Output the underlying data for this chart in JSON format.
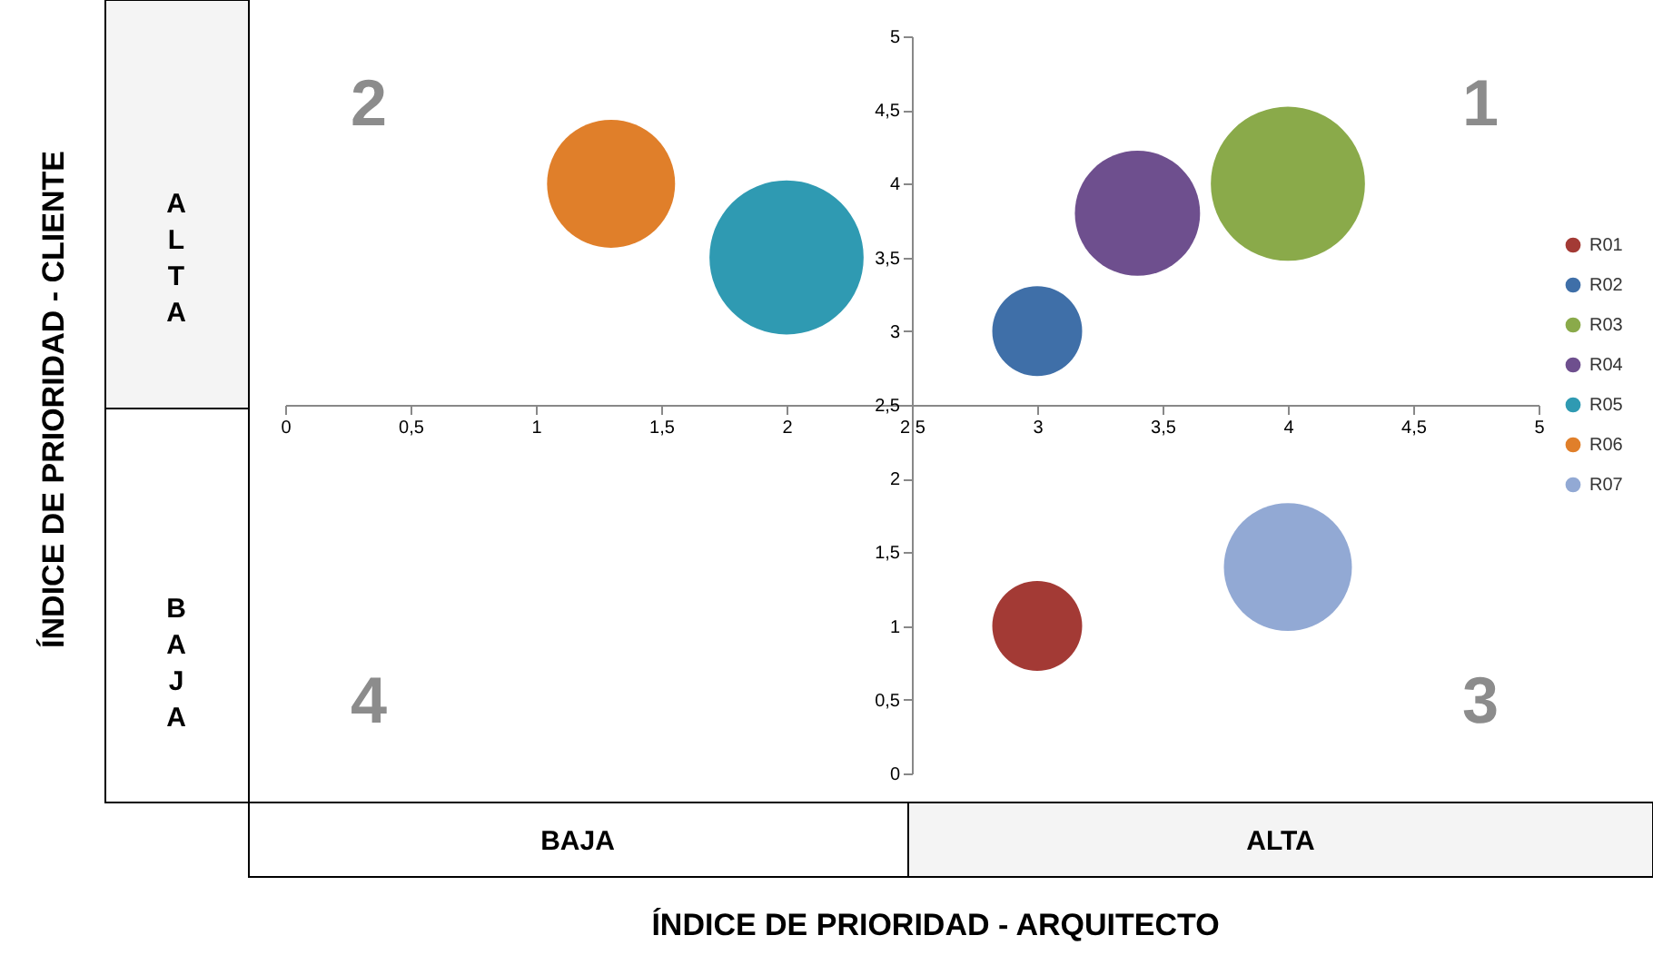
{
  "chart_data": {
    "type": "bubble",
    "series": [
      {
        "name": "R01",
        "color": "#a33a35",
        "x": [
          3
        ],
        "values": [
          1
        ],
        "sizes": [
          0.34
        ]
      },
      {
        "name": "R02",
        "color": "#3f6fa8",
        "x": [
          3
        ],
        "values": [
          3
        ],
        "sizes": [
          0.34
        ]
      },
      {
        "name": "R03",
        "color": "#8aaa4a",
        "x": [
          4
        ],
        "values": [
          4
        ],
        "sizes": [
          1
        ]
      },
      {
        "name": "R04",
        "color": "#6e4f8e",
        "x": [
          3.4
        ],
        "values": [
          3.8
        ],
        "sizes": [
          0.66
        ]
      },
      {
        "name": "R05",
        "color": "#2f9ab2",
        "x": [
          2
        ],
        "values": [
          3.5
        ],
        "sizes": [
          1
        ]
      },
      {
        "name": "R06",
        "color": "#e07f2a",
        "x": [
          1.3
        ],
        "values": [
          4
        ],
        "sizes": [
          0.69
        ]
      },
      {
        "name": "R07",
        "color": "#92a9d4",
        "x": [
          4
        ],
        "values": [
          1.4
        ],
        "sizes": [
          0.69
        ]
      }
    ],
    "xlim": [
      0,
      5
    ],
    "xticks": [
      0,
      {
        "value": 0.5,
        "label": "0,5"
      },
      1,
      {
        "value": 1.5,
        "label": "1,5"
      },
      2,
      {
        "value": 2.5,
        "label": "2,5"
      },
      3,
      {
        "value": 3.5,
        "label": "3,5"
      },
      4,
      {
        "value": 4.5,
        "label": "4,5"
      },
      5
    ],
    "ylim": [
      0,
      5
    ],
    "yticks": [
      0,
      {
        "value": 0.5,
        "label": "0,5"
      },
      1,
      {
        "value": 1.5,
        "label": "1,5"
      },
      2,
      {
        "value": 2.5,
        "label": "2,5"
      },
      3,
      {
        "value": 3.5,
        "label": "3,5"
      },
      4,
      {
        "value": 4.5,
        "label": "4,5"
      },
      5
    ],
    "annotations": [
      "1",
      "2",
      "3",
      "4",
      "ALTA",
      "BAJA",
      "BAJA",
      "ALTA",
      "ÍNDICE DE PRIORIDAD - CLIENTE",
      "ÍNDICE DE PRIORIDAD - ARQUITECTO"
    ],
    "grid": false,
    "legend": "right"
  }
}
